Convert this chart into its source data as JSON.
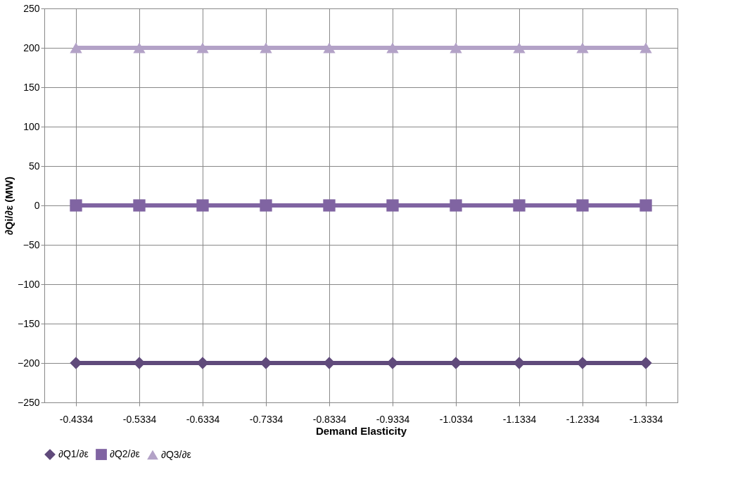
{
  "chart_data": {
    "type": "line",
    "xlabel": "Demand Elasticity",
    "ylabel": "∂Qi/∂ε (MW)",
    "categories": [
      "-0.4334",
      "-0.5334",
      "-0.6334",
      "-0.7334",
      "-0.8334",
      "-0.9334",
      "-1.0334",
      "-1.1334",
      "-1.2334",
      "-1.3334"
    ],
    "series": [
      {
        "name": "∂Q1/∂ε",
        "color": "#604a7b",
        "marker": "diamond",
        "values": [
          -200,
          -200,
          -200,
          -200,
          -200,
          -200,
          -200,
          -200,
          -200,
          -200
        ]
      },
      {
        "name": "∂Q2/∂ε",
        "color": "#8064a2",
        "marker": "square",
        "values": [
          0,
          0,
          0,
          0,
          0,
          0,
          0,
          0,
          0,
          0
        ]
      },
      {
        "name": "∂Q3/∂ε",
        "color": "#b3a2c7",
        "marker": "triangle",
        "values": [
          200,
          200,
          200,
          200,
          200,
          200,
          200,
          200,
          200,
          200
        ]
      }
    ],
    "ylim": [
      -250,
      250
    ],
    "yticks": [
      -250,
      -200,
      -150,
      -100,
      -50,
      0,
      50,
      100,
      150,
      200,
      250
    ],
    "grid": true,
    "legend": "bottom"
  }
}
